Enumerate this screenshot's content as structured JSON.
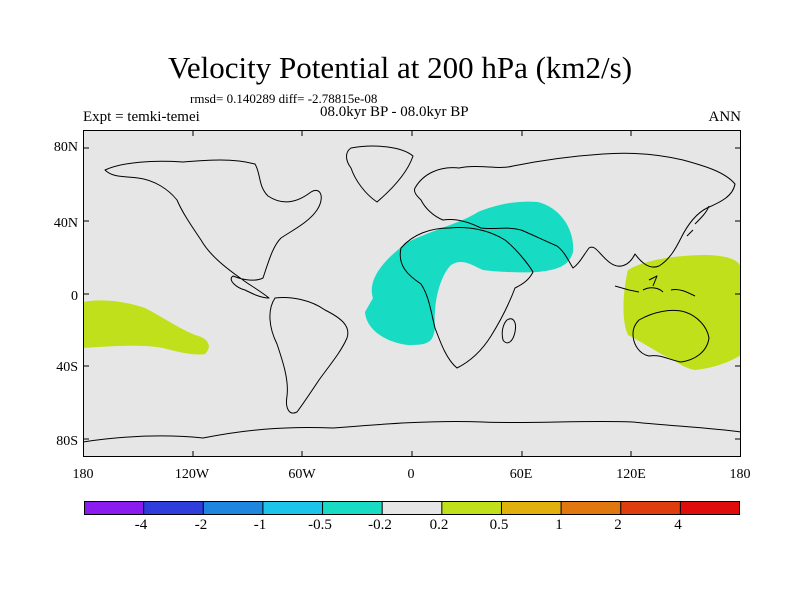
{
  "title": "Velocity Potential at 200 hPa (km2/s)",
  "stats": "rmsd= 0.140289 diff= -2.78815e-08",
  "experiment": "Expt = temki-temei",
  "period": "08.0kyr BP - 08.0kyr BP",
  "season": "ANN",
  "axes": {
    "lat_labels": [
      "80N",
      "40N",
      "0",
      "40S",
      "80S"
    ],
    "lon_labels": [
      "180",
      "120W",
      "60W",
      "0",
      "60E",
      "120E",
      "180"
    ]
  },
  "colorbar": {
    "colors": [
      "#8b1cf0",
      "#2e3ddb",
      "#1f86df",
      "#1cc3ea",
      "#17dcc3",
      "#e6e6e6",
      "#bfe01a",
      "#e0b10c",
      "#e0780f",
      "#e03d0f",
      "#e00c0c"
    ],
    "labels": [
      "-4",
      "-2",
      "-1",
      "-0.5",
      "-0.2",
      "0.2",
      "0.5",
      "1",
      "2",
      "4"
    ]
  },
  "map_colors": {
    "ocean_fill": "#e6e6e6",
    "negative_anomaly": "#17dcc3",
    "positive_anomaly": "#bfe01a"
  }
}
